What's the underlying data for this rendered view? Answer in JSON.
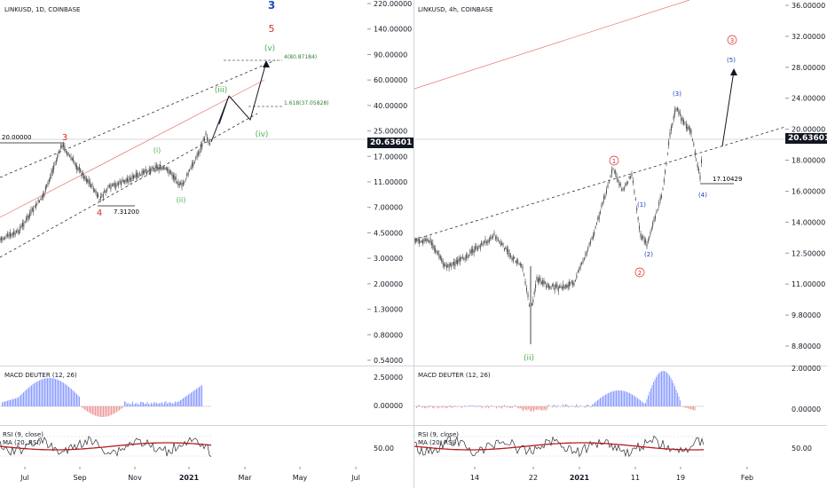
{
  "left": {
    "title": "LINKUSD, 1D, COINBASE",
    "price_label": "20.63601",
    "y_ticks": [
      "220.00000",
      "140.00000",
      "90.00000",
      "60.00000",
      "40.00000",
      "25.00000",
      "17.00000",
      "11.00000",
      "7.00000",
      "4.50000",
      "3.00000",
      "2.00000",
      "1.30000",
      "0.80000",
      "0.54000"
    ],
    "x_ticks": [
      "Jul",
      "Sep",
      "Nov",
      "2021",
      "Mar",
      "May",
      "Jul"
    ],
    "annotations": {
      "level_20": "20.00000",
      "level_7": "7.31200",
      "fib_4": "4(80.87184)",
      "fib_1618": "1.618(37.05828)"
    },
    "waves": {
      "w3": "3",
      "w4": "4",
      "w5": "5",
      "wbig3": "3",
      "i": "(i)",
      "ii": "(ii)",
      "iii": "(iii)",
      "iv": "(iv)",
      "v": "(v)"
    },
    "macd_title": "MACD DEUTER (12, 26)",
    "macd_ticks": [
      "2.50000",
      "0.00000"
    ],
    "rsi_title": "RSI (9, close)",
    "rsi_ma_title": "MA (20, RSI)",
    "rsi_ticks": [
      "50.00"
    ]
  },
  "right": {
    "title": "LINKUSD, 4h, COINBASE",
    "price_label": "20.63601",
    "y_ticks": [
      "36.00000",
      "32.00000",
      "28.00000",
      "24.00000",
      "20.00000",
      "18.00000",
      "16.00000",
      "14.00000",
      "12.50000",
      "11.00000",
      "9.80000",
      "8.80000"
    ],
    "x_ticks": [
      "14",
      "22",
      "2021",
      "11",
      "19",
      "Feb"
    ],
    "annotations": {
      "level_17": "17.10429"
    },
    "waves": {
      "c1": "1",
      "c2": "2",
      "c3": "3",
      "p1": "(1)",
      "p2": "(2)",
      "p3": "(3)",
      "p4": "(4)",
      "p5": "(5)",
      "ii": "(ii)"
    },
    "macd_title": "MACD DEUTER (12, 26)",
    "macd_ticks": [
      "2.00000",
      "0.00000"
    ],
    "rsi_title": "RSI (9, close)",
    "rsi_ma_title": "MA (20, RSI)",
    "rsi_ticks": [
      "50.00"
    ]
  },
  "colors": {
    "accent_red": "#d32f2f",
    "wave_green": "#4caf50",
    "wave_blue": "#1e3bb8",
    "macd_pos": "#8c9eff",
    "macd_neg": "#ef9a9a",
    "rsi_ma": "#b71c1c",
    "candle": "#4a4a4a"
  }
}
